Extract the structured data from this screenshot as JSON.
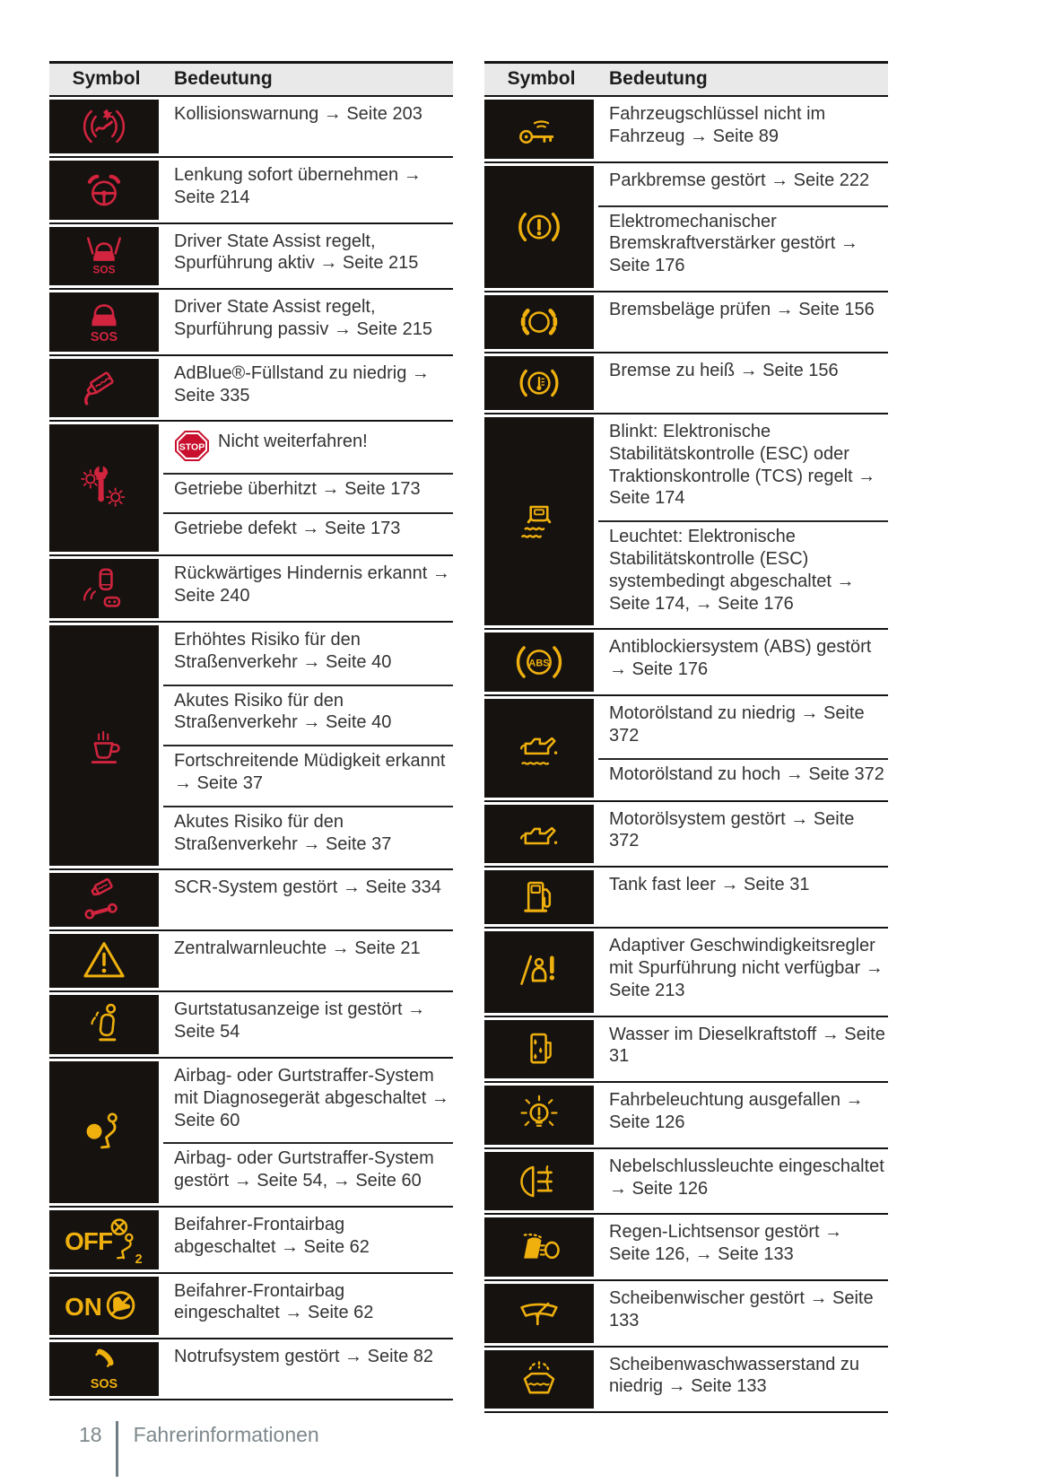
{
  "colors": {
    "red": "#d2243e",
    "yellow": "#efb00e",
    "cell_bg": "#151210",
    "header_bg": "#e9e9e9",
    "line": "#141414",
    "stop_red": "#c8102e",
    "footer_text": "#7e888c"
  },
  "tables": [
    {
      "header": {
        "symbol": "Symbol",
        "bedeutung": "Bedeutung"
      },
      "rows": [
        {
          "icon": "collision-warning",
          "color": "red",
          "subs": [
            {
              "text": "Kollisionswarnung → Seite 203"
            }
          ]
        },
        {
          "icon": "steering-takeover",
          "color": "red",
          "subs": [
            {
              "text": "Lenkung sofort übernehmen → Seite 214"
            }
          ]
        },
        {
          "icon": "driver-state-assist-lane-active",
          "color": "red",
          "subs": [
            {
              "text": "Driver State Assist regelt, Spurführung aktiv → Seite 215"
            }
          ]
        },
        {
          "icon": "driver-state-assist-lane-passive",
          "color": "red",
          "subs": [
            {
              "text": "Driver State Assist regelt, Spurführung passiv → Seite 215"
            }
          ]
        },
        {
          "icon": "adblue-low",
          "color": "red",
          "subs": [
            {
              "text": "AdBlue®-Füllstand zu niedrig → Seite 335"
            }
          ]
        },
        {
          "icon": "transmission-fault",
          "color": "red",
          "subs": [
            {
              "badge": "STOP",
              "text": "Nicht weiterfahren!"
            },
            {
              "text": "Getriebe überhitzt → Seite 173"
            },
            {
              "text": "Getriebe defekt → Seite 173"
            }
          ]
        },
        {
          "icon": "rear-obstacle",
          "color": "red",
          "subs": [
            {
              "text": "Rückwärtiges Hindernis erkannt → Seite 240"
            }
          ]
        },
        {
          "icon": "driver-fatigue",
          "color": "red",
          "subs": [
            {
              "text": "Erhöhtes Risiko für den Straßenverkehr → Seite 40"
            },
            {
              "text": "Akutes Risiko für den Straßenverkehr → Seite 40"
            },
            {
              "text": "Fortschreitende Müdigkeit erkannt → Seite 37"
            },
            {
              "text": "Akutes Risiko für den Straßenverkehr → Seite 37"
            }
          ]
        },
        {
          "icon": "scr-system-fault",
          "color": "red",
          "subs": [
            {
              "text": "SCR-System gestört → Seite 334"
            }
          ]
        },
        {
          "icon": "central-warning",
          "color": "yellow",
          "subs": [
            {
              "text": "Zentralwarnleuchte → Seite 21"
            }
          ]
        },
        {
          "icon": "belt-status-fault",
          "color": "yellow",
          "subs": [
            {
              "text": "Gurtstatusanzeige ist gestört → Seite 54"
            }
          ]
        },
        {
          "icon": "airbag-system",
          "color": "yellow",
          "subs": [
            {
              "text": "Airbag- oder Gurtstraffer-System mit Diagnosegerät abgeschaltet → Seite 60"
            },
            {
              "text": "Airbag- oder Gurtstraffer-System gestört → Seite 54, → Seite 60"
            }
          ]
        },
        {
          "icon": "passenger-airbag-off",
          "color": "yellow",
          "subs": [
            {
              "text": "Beifahrer-Frontairbag abgeschaltet → Seite 62"
            }
          ]
        },
        {
          "icon": "passenger-airbag-on",
          "color": "yellow",
          "subs": [
            {
              "text": "Beifahrer-Frontairbag eingeschaltet → Seite 62"
            }
          ]
        },
        {
          "icon": "emergency-call-fault",
          "color": "yellow",
          "subs": [
            {
              "text": "Notrufsystem gestört → Seite 82"
            }
          ]
        }
      ]
    },
    {
      "header": {
        "symbol": "Symbol",
        "bedeutung": "Bedeutung"
      },
      "rows": [
        {
          "icon": "key-not-in-vehicle",
          "color": "yellow",
          "subs": [
            {
              "text": "Fahrzeugschlüssel nicht im Fahrzeug → Seite 89"
            }
          ]
        },
        {
          "icon": "brake-warning",
          "color": "yellow",
          "subs": [
            {
              "text": "Parkbremse gestört → Seite 222"
            },
            {
              "text": "Elektromechanischer Bremskraftverstärker gestört → Seite 176"
            }
          ]
        },
        {
          "icon": "brake-pads",
          "color": "yellow",
          "subs": [
            {
              "text": "Bremsbeläge prüfen → Seite 156"
            }
          ]
        },
        {
          "icon": "brake-overheat",
          "color": "yellow",
          "subs": [
            {
              "text": "Bremse zu heiß → Seite 156"
            }
          ]
        },
        {
          "icon": "esc-tcs",
          "color": "yellow",
          "subs": [
            {
              "text": "Blinkt: Elektronische Stabilitätskontrolle (ESC) oder Traktionskontrolle (TCS) regelt → Seite 174"
            },
            {
              "text": "Leuchtet: Elektronische Stabilitätskontrolle (ESC) systembedingt abgeschaltet → Seite 174, → Seite 176"
            }
          ]
        },
        {
          "icon": "abs-fault",
          "color": "yellow",
          "subs": [
            {
              "text": "Antiblockiersystem (ABS) gestört → Seite 176"
            }
          ]
        },
        {
          "icon": "engine-oil-level",
          "color": "yellow",
          "subs": [
            {
              "text": "Motorölstand zu niedrig → Seite 372"
            },
            {
              "text": "Motorölstand zu hoch → Seite 372"
            }
          ]
        },
        {
          "icon": "engine-oil-system",
          "color": "yellow",
          "subs": [
            {
              "text": "Motorölsystem gestört → Seite 372"
            }
          ]
        },
        {
          "icon": "fuel-low",
          "color": "yellow",
          "subs": [
            {
              "text": "Tank fast leer → Seite 31"
            }
          ]
        },
        {
          "icon": "acc-lane-unavailable",
          "color": "yellow",
          "subs": [
            {
              "text": "Adaptiver Geschwindigkeitsregler mit Spurführung nicht verfügbar → Seite 213"
            }
          ]
        },
        {
          "icon": "water-in-diesel",
          "color": "yellow",
          "subs": [
            {
              "text": "Wasser im Dieselkraftstoff → Seite 31"
            }
          ]
        },
        {
          "icon": "lighting-failure",
          "color": "yellow",
          "subs": [
            {
              "text": "Fahrbeleuchtung ausgefallen → Seite 126"
            }
          ]
        },
        {
          "icon": "rear-fog-light",
          "color": "yellow",
          "subs": [
            {
              "text": "Nebelschlussleuchte eingeschaltet → Seite 126"
            }
          ]
        },
        {
          "icon": "rain-light-sensor",
          "color": "yellow",
          "subs": [
            {
              "text": "Regen-Lichtsensor gestört → Seite 126, → Seite 133"
            }
          ]
        },
        {
          "icon": "wiper-fault",
          "color": "yellow",
          "subs": [
            {
              "text": "Scheibenwischer gestört → Seite 133"
            }
          ]
        },
        {
          "icon": "washer-fluid-low",
          "color": "yellow",
          "subs": [
            {
              "text": "Scheibenwaschwasserstand zu niedrig → Seite 133"
            }
          ]
        }
      ]
    }
  ],
  "footer": {
    "page_number": "18",
    "section": "Fahrerinformationen"
  }
}
